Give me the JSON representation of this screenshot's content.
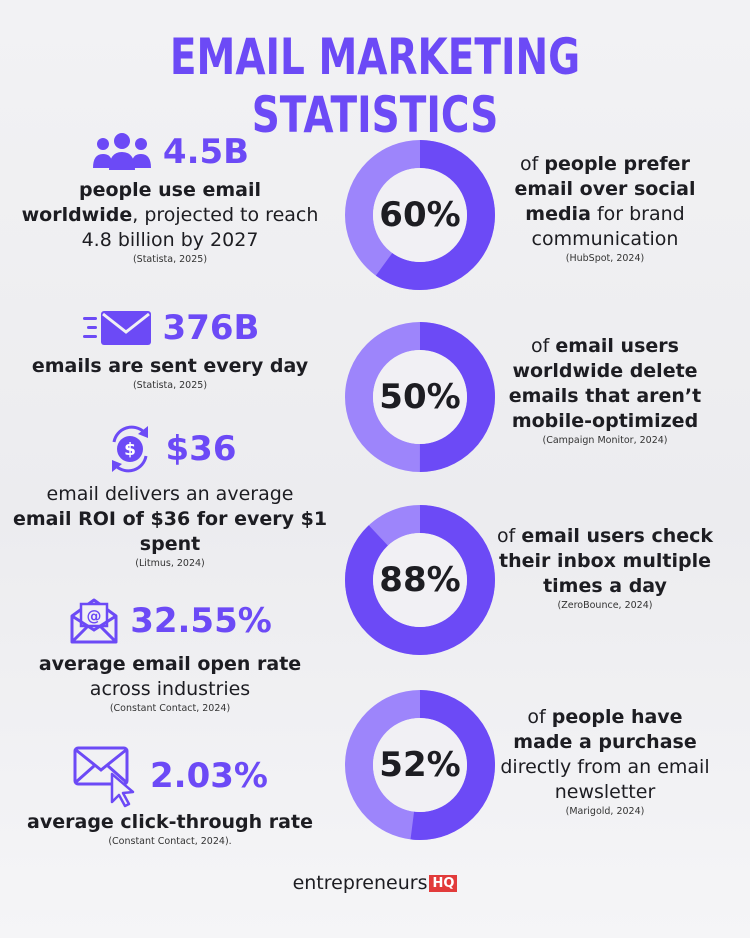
{
  "title": "EMAIL MARKETING STATISTICS",
  "colors": {
    "accent": "#6c4af6",
    "accent_light": "#9d85fb",
    "text": "#1d1d22",
    "logo_badge": "#e23b3b"
  },
  "left_stats": [
    {
      "icon": "people-icon",
      "value": "4.5B",
      "bold1": "people use email",
      "bold2": "worldwide",
      "rest": ", projected to reach 4.8 billion by 2027",
      "source": "(Statista, 2025)"
    },
    {
      "icon": "fast-mail-icon",
      "value": "376B",
      "bold1": "emails are sent every day",
      "source": "(Statista, 2025)"
    },
    {
      "icon": "dollar-cycle-icon",
      "value": "$36",
      "lead": "email delivers an average",
      "bold1": "email ROI of $36 for every $1 spent",
      "source": "(Litmus, 2024)"
    },
    {
      "icon": "email-at-icon",
      "value": "32.55%",
      "bold1": "average email open rate",
      "rest": "across industries",
      "source": "(Constant Contact, 2024)"
    },
    {
      "icon": "email-click-icon",
      "value": "2.03%",
      "bold1": "average click-through rate",
      "source": "(Constant Contact, 2024)."
    }
  ],
  "right_stats": [
    {
      "percent": 60,
      "label": "60%",
      "lead": "of",
      "bold": "people prefer email over social media",
      "rest": "for brand communication",
      "source": "(HubSpot, 2024)"
    },
    {
      "percent": 50,
      "label": "50%",
      "lead": "of",
      "bold": "email users worldwide delete emails that aren’t mobile-optimized",
      "source": "(Campaign Monitor, 2024)"
    },
    {
      "percent": 88,
      "label": "88%",
      "lead": "of",
      "bold": "email users check their inbox multiple times a day",
      "source": "(ZeroBounce, 2024)"
    },
    {
      "percent": 52,
      "label": "52%",
      "lead": "of",
      "bold": "people have made a purchase",
      "rest": "directly from an email newsletter",
      "source": "(Marigold, 2024)"
    }
  ],
  "logo": {
    "text": "entrepreneurs",
    "badge": "HQ"
  }
}
